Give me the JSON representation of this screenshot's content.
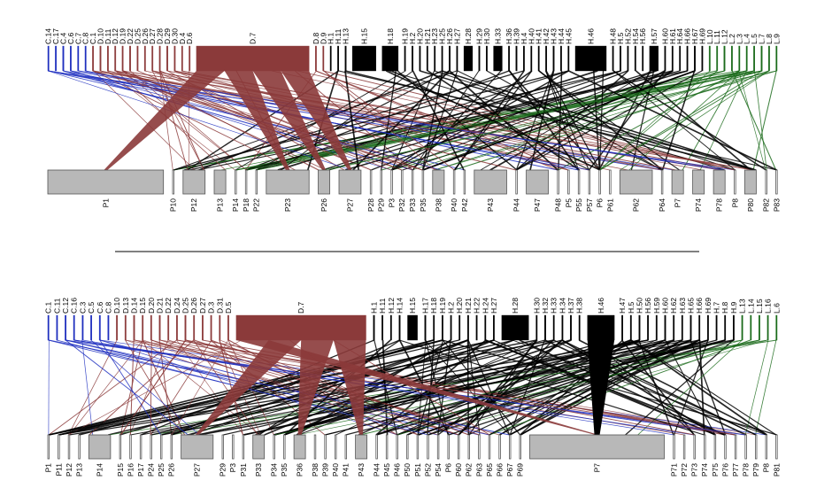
{
  "colors": {
    "C": "#1f2fbf",
    "D": "#8b3a3a",
    "H": "#000000",
    "L": "#1b6b1b",
    "box_fill": "#b8b8b8",
    "box_stroke": "#555555",
    "divider": "#000000"
  },
  "panels": [
    {
      "top_nodes": [
        {
          "label": "C.14",
          "g": "C",
          "w": 1
        },
        {
          "label": "C.17",
          "g": "C",
          "w": 1
        },
        {
          "label": "C.4",
          "g": "C",
          "w": 1
        },
        {
          "label": "C.6",
          "g": "C",
          "w": 1
        },
        {
          "label": "C.7",
          "g": "C",
          "w": 1
        },
        {
          "label": "C.8",
          "g": "C",
          "w": 1
        },
        {
          "label": "C.1",
          "g": "D",
          "w": 1
        },
        {
          "label": "D.10",
          "g": "D",
          "w": 1
        },
        {
          "label": "D.11",
          "g": "D",
          "w": 1
        },
        {
          "label": "D.12",
          "g": "D",
          "w": 1
        },
        {
          "label": "D.19",
          "g": "D",
          "w": 1
        },
        {
          "label": "D.22",
          "g": "D",
          "w": 1
        },
        {
          "label": "D.25",
          "g": "D",
          "w": 1
        },
        {
          "label": "D.26",
          "g": "D",
          "w": 1
        },
        {
          "label": "D.27",
          "g": "D",
          "w": 1
        },
        {
          "label": "D.28",
          "g": "D",
          "w": 1
        },
        {
          "label": "D.29",
          "g": "D",
          "w": 1
        },
        {
          "label": "D.30",
          "g": "D",
          "w": 1
        },
        {
          "label": "D.4",
          "g": "D",
          "w": 1
        },
        {
          "label": "D.6",
          "g": "D",
          "w": 1
        },
        {
          "label": "D.7",
          "g": "D",
          "w": 16
        },
        {
          "label": "D.8",
          "g": "D",
          "w": 1
        },
        {
          "label": "D.9",
          "g": "D",
          "w": 1
        },
        {
          "label": "H.1",
          "g": "H",
          "w": 1
        },
        {
          "label": "H.11",
          "g": "H",
          "w": 1
        },
        {
          "label": "H.13",
          "g": "H",
          "w": 1
        },
        {
          "label": "H.15",
          "g": "H",
          "w": 4
        },
        {
          "label": "H.18",
          "g": "H",
          "w": 3
        },
        {
          "label": "H.19",
          "g": "H",
          "w": 1
        },
        {
          "label": "H.2",
          "g": "H",
          "w": 1
        },
        {
          "label": "H.20",
          "g": "H",
          "w": 1
        },
        {
          "label": "H.21",
          "g": "H",
          "w": 1
        },
        {
          "label": "H.23",
          "g": "H",
          "w": 1
        },
        {
          "label": "H.25",
          "g": "H",
          "w": 1
        },
        {
          "label": "H.26",
          "g": "H",
          "w": 1
        },
        {
          "label": "H.27",
          "g": "H",
          "w": 1
        },
        {
          "label": "H.28",
          "g": "H",
          "w": 2
        },
        {
          "label": "H.29",
          "g": "H",
          "w": 1
        },
        {
          "label": "H.30",
          "g": "H",
          "w": 1
        },
        {
          "label": "H.33",
          "g": "H",
          "w": 2
        },
        {
          "label": "H.36",
          "g": "H",
          "w": 1
        },
        {
          "label": "H.39",
          "g": "H",
          "w": 1
        },
        {
          "label": "H.4",
          "g": "H",
          "w": 1
        },
        {
          "label": "H.40",
          "g": "H",
          "w": 1
        },
        {
          "label": "H.41",
          "g": "H",
          "w": 1
        },
        {
          "label": "H.42",
          "g": "H",
          "w": 1
        },
        {
          "label": "H.43",
          "g": "H",
          "w": 1
        },
        {
          "label": "H.44",
          "g": "H",
          "w": 1
        },
        {
          "label": "H.45",
          "g": "H",
          "w": 1
        },
        {
          "label": "H.46",
          "g": "H",
          "w": 5
        },
        {
          "label": "H.48",
          "g": "H",
          "w": 1
        },
        {
          "label": "H.5",
          "g": "H",
          "w": 1
        },
        {
          "label": "H.52",
          "g": "H",
          "w": 1
        },
        {
          "label": "H.54",
          "g": "H",
          "w": 1
        },
        {
          "label": "H.56",
          "g": "H",
          "w": 1
        },
        {
          "label": "H.57",
          "g": "H",
          "w": 2
        },
        {
          "label": "H.60",
          "g": "H",
          "w": 1
        },
        {
          "label": "H.61",
          "g": "H",
          "w": 1
        },
        {
          "label": "H.64",
          "g": "H",
          "w": 1
        },
        {
          "label": "H.66",
          "g": "H",
          "w": 1
        },
        {
          "label": "H.67",
          "g": "H",
          "w": 1
        },
        {
          "label": "H.69",
          "g": "H",
          "w": 1
        },
        {
          "label": "L.10",
          "g": "L",
          "w": 1
        },
        {
          "label": "L.11",
          "g": "L",
          "w": 1
        },
        {
          "label": "L.12",
          "g": "L",
          "w": 1
        },
        {
          "label": "L.2",
          "g": "L",
          "w": 1
        },
        {
          "label": "L.3",
          "g": "L",
          "w": 1
        },
        {
          "label": "L.4",
          "g": "L",
          "w": 1
        },
        {
          "label": "L.5",
          "g": "L",
          "w": 1
        },
        {
          "label": "L.7",
          "g": "L",
          "w": 1
        },
        {
          "label": "L.8",
          "g": "L",
          "w": 1
        },
        {
          "label": "L.9",
          "g": "L",
          "w": 1
        }
      ],
      "bottom_nodes": [
        {
          "label": "P1",
          "w": 12
        },
        {
          "label": "P10",
          "w": 1
        },
        {
          "label": "P12",
          "w": 3
        },
        {
          "label": "P13",
          "w": 2
        },
        {
          "label": "P14",
          "w": 1
        },
        {
          "label": "P18",
          "w": 1
        },
        {
          "label": "P22",
          "w": 1
        },
        {
          "label": "P23",
          "w": 5
        },
        {
          "label": "P26",
          "w": 2
        },
        {
          "label": "P27",
          "w": 3
        },
        {
          "label": "P28",
          "w": 1
        },
        {
          "label": "P29",
          "w": 1
        },
        {
          "label": "P3",
          "w": 1
        },
        {
          "label": "P32",
          "w": 1
        },
        {
          "label": "P33",
          "w": 1
        },
        {
          "label": "P35",
          "w": 1
        },
        {
          "label": "P38",
          "w": 2
        },
        {
          "label": "P40",
          "w": 1
        },
        {
          "label": "P42",
          "w": 1
        },
        {
          "label": "P43",
          "w": 4
        },
        {
          "label": "P44",
          "w": 1
        },
        {
          "label": "P47",
          "w": 3
        },
        {
          "label": "P48",
          "w": 1
        },
        {
          "label": "P5",
          "w": 1
        },
        {
          "label": "P55",
          "w": 1
        },
        {
          "label": "P57",
          "w": 1
        },
        {
          "label": "P6",
          "w": 1
        },
        {
          "label": "P61",
          "w": 1
        },
        {
          "label": "P62",
          "w": 4
        },
        {
          "label": "P64",
          "w": 1
        },
        {
          "label": "P7",
          "w": 2
        },
        {
          "label": "P74",
          "w": 2
        },
        {
          "label": "P78",
          "w": 2
        },
        {
          "label": "P8",
          "w": 1
        },
        {
          "label": "P80",
          "w": 2
        },
        {
          "label": "P82",
          "w": 1
        },
        {
          "label": "P83",
          "w": 1
        }
      ]
    },
    {
      "top_nodes": [
        {
          "label": "C.1",
          "g": "C",
          "w": 1
        },
        {
          "label": "C.11",
          "g": "C",
          "w": 1
        },
        {
          "label": "C.12",
          "g": "C",
          "w": 1
        },
        {
          "label": "C.16",
          "g": "C",
          "w": 1
        },
        {
          "label": "C.3",
          "g": "C",
          "w": 1
        },
        {
          "label": "C.5",
          "g": "C",
          "w": 1
        },
        {
          "label": "C.6",
          "g": "C",
          "w": 1
        },
        {
          "label": "C.8",
          "g": "C",
          "w": 1
        },
        {
          "label": "D.10",
          "g": "D",
          "w": 1
        },
        {
          "label": "D.13",
          "g": "D",
          "w": 1
        },
        {
          "label": "D.14",
          "g": "D",
          "w": 1
        },
        {
          "label": "D.15",
          "g": "D",
          "w": 1
        },
        {
          "label": "D.20",
          "g": "D",
          "w": 1
        },
        {
          "label": "D.21",
          "g": "D",
          "w": 1
        },
        {
          "label": "D.22",
          "g": "D",
          "w": 1
        },
        {
          "label": "D.24",
          "g": "D",
          "w": 1
        },
        {
          "label": "D.25",
          "g": "D",
          "w": 1
        },
        {
          "label": "D.26",
          "g": "D",
          "w": 1
        },
        {
          "label": "D.27",
          "g": "D",
          "w": 1
        },
        {
          "label": "D.3",
          "g": "D",
          "w": 1
        },
        {
          "label": "D.31",
          "g": "D",
          "w": 1
        },
        {
          "label": "D.5",
          "g": "D",
          "w": 1
        },
        {
          "label": "D.7",
          "g": "D",
          "w": 16
        },
        {
          "label": "H.1",
          "g": "H",
          "w": 1
        },
        {
          "label": "H.11",
          "g": "H",
          "w": 1
        },
        {
          "label": "H.12",
          "g": "H",
          "w": 1
        },
        {
          "label": "H.14",
          "g": "H",
          "w": 1
        },
        {
          "label": "H.15",
          "g": "H",
          "w": 2
        },
        {
          "label": "H.17",
          "g": "H",
          "w": 1
        },
        {
          "label": "H.18",
          "g": "H",
          "w": 1
        },
        {
          "label": "H.19",
          "g": "H",
          "w": 1
        },
        {
          "label": "H.2",
          "g": "H",
          "w": 1
        },
        {
          "label": "H.20",
          "g": "H",
          "w": 1
        },
        {
          "label": "H.21",
          "g": "H",
          "w": 1
        },
        {
          "label": "H.22",
          "g": "H",
          "w": 1
        },
        {
          "label": "H.24",
          "g": "H",
          "w": 1
        },
        {
          "label": "H.27",
          "g": "H",
          "w": 1
        },
        {
          "label": "H.28",
          "g": "H",
          "w": 4
        },
        {
          "label": "H.30",
          "g": "H",
          "w": 1
        },
        {
          "label": "H.32",
          "g": "H",
          "w": 1
        },
        {
          "label": "H.33",
          "g": "H",
          "w": 1
        },
        {
          "label": "H.34",
          "g": "H",
          "w": 1
        },
        {
          "label": "H.37",
          "g": "H",
          "w": 1
        },
        {
          "label": "H.38",
          "g": "H",
          "w": 1
        },
        {
          "label": "H.46",
          "g": "H",
          "w": 4
        },
        {
          "label": "H.47",
          "g": "H",
          "w": 1
        },
        {
          "label": "H.5",
          "g": "H",
          "w": 1
        },
        {
          "label": "H.50",
          "g": "H",
          "w": 1
        },
        {
          "label": "H.56",
          "g": "H",
          "w": 1
        },
        {
          "label": "H.59",
          "g": "H",
          "w": 1
        },
        {
          "label": "H.60",
          "g": "H",
          "w": 1
        },
        {
          "label": "H.62",
          "g": "H",
          "w": 1
        },
        {
          "label": "H.63",
          "g": "H",
          "w": 1
        },
        {
          "label": "H.65",
          "g": "H",
          "w": 1
        },
        {
          "label": "H.66",
          "g": "H",
          "w": 1
        },
        {
          "label": "H.69",
          "g": "H",
          "w": 1
        },
        {
          "label": "H.7",
          "g": "H",
          "w": 1
        },
        {
          "label": "H.8",
          "g": "H",
          "w": 1
        },
        {
          "label": "H.9",
          "g": "H",
          "w": 1
        },
        {
          "label": "L.13",
          "g": "L",
          "w": 1
        },
        {
          "label": "L.14",
          "g": "L",
          "w": 1
        },
        {
          "label": "L.15",
          "g": "L",
          "w": 1
        },
        {
          "label": "L.16",
          "g": "L",
          "w": 1
        },
        {
          "label": "L.6",
          "g": "L",
          "w": 1
        }
      ],
      "bottom_nodes": [
        {
          "label": "P1",
          "w": 1
        },
        {
          "label": "P11",
          "w": 1
        },
        {
          "label": "P12",
          "w": 1
        },
        {
          "label": "P13",
          "w": 1
        },
        {
          "label": "P14",
          "w": 3
        },
        {
          "label": "P15",
          "w": 1
        },
        {
          "label": "P16",
          "w": 1
        },
        {
          "label": "P17",
          "w": 1
        },
        {
          "label": "P24",
          "w": 1
        },
        {
          "label": "P25",
          "w": 1
        },
        {
          "label": "P26",
          "w": 1
        },
        {
          "label": "P27",
          "w": 4
        },
        {
          "label": "P29",
          "w": 1
        },
        {
          "label": "P3",
          "w": 1
        },
        {
          "label": "P31",
          "w": 1
        },
        {
          "label": "P33",
          "w": 2
        },
        {
          "label": "P34",
          "w": 1
        },
        {
          "label": "P35",
          "w": 1
        },
        {
          "label": "P36",
          "w": 2
        },
        {
          "label": "P38",
          "w": 1
        },
        {
          "label": "P39",
          "w": 1
        },
        {
          "label": "P40",
          "w": 1
        },
        {
          "label": "P41",
          "w": 1
        },
        {
          "label": "P43",
          "w": 2
        },
        {
          "label": "P44",
          "w": 1
        },
        {
          "label": "P45",
          "w": 1
        },
        {
          "label": "P46",
          "w": 1
        },
        {
          "label": "P50",
          "w": 1
        },
        {
          "label": "P51",
          "w": 1
        },
        {
          "label": "P52",
          "w": 1
        },
        {
          "label": "P54",
          "w": 1
        },
        {
          "label": "P6",
          "w": 1
        },
        {
          "label": "P60",
          "w": 1
        },
        {
          "label": "P62",
          "w": 1
        },
        {
          "label": "P63",
          "w": 1
        },
        {
          "label": "P65",
          "w": 1
        },
        {
          "label": "P66",
          "w": 1
        },
        {
          "label": "P67",
          "w": 1
        },
        {
          "label": "P69",
          "w": 1
        },
        {
          "label": "P7",
          "w": 14
        },
        {
          "label": "P71",
          "w": 1
        },
        {
          "label": "P72",
          "w": 1
        },
        {
          "label": "P73",
          "w": 1
        },
        {
          "label": "P74",
          "w": 1
        },
        {
          "label": "P75",
          "w": 1
        },
        {
          "label": "P76",
          "w": 1
        },
        {
          "label": "P77",
          "w": 1
        },
        {
          "label": "P78",
          "w": 1
        },
        {
          "label": "P79",
          "w": 1
        },
        {
          "label": "P8",
          "w": 1
        },
        {
          "label": "P81",
          "w": 1
        }
      ]
    }
  ]
}
